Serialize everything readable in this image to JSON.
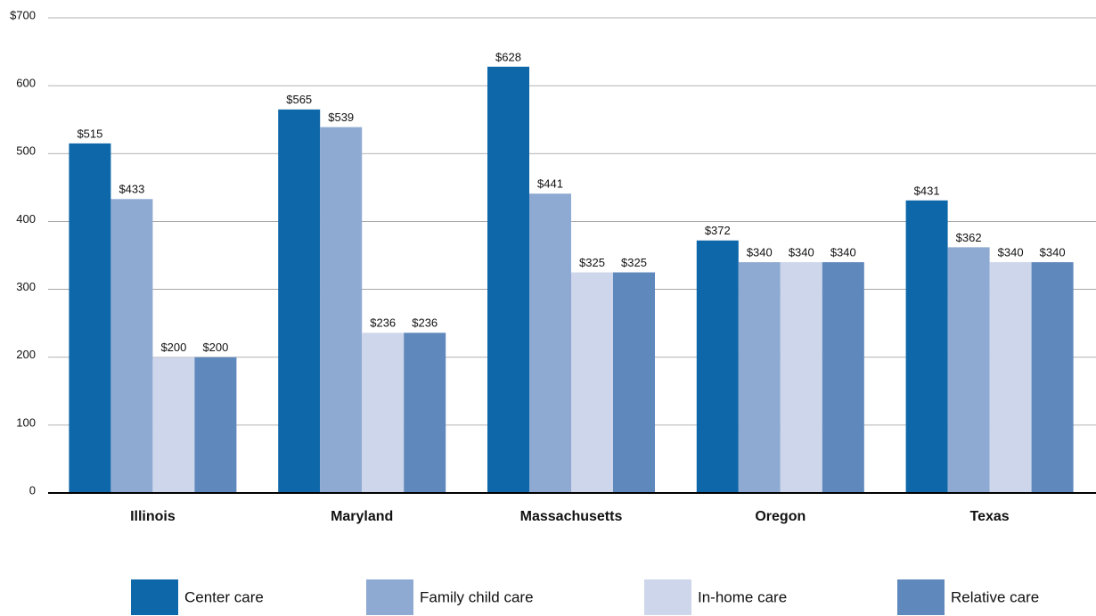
{
  "chart_data": {
    "type": "bar",
    "categories": [
      "Illinois",
      "Maryland",
      "Massachusetts",
      "Oregon",
      "Texas"
    ],
    "series": [
      {
        "name": "Center care",
        "color": "#0e67a8",
        "values": [
          515,
          565,
          628,
          372,
          431
        ],
        "value_labels": [
          "$515",
          "$565",
          "$628",
          "$372",
          "$431"
        ]
      },
      {
        "name": "Family child care",
        "color": "#8eaad2",
        "values": [
          433,
          539,
          441,
          340,
          362
        ],
        "value_labels": [
          "$433",
          "$539",
          "$441",
          "$340",
          "$362"
        ]
      },
      {
        "name": "In-home care",
        "color": "#cdd6ea",
        "values": [
          200,
          236,
          325,
          340,
          340
        ],
        "value_labels": [
          "$200",
          "$236",
          "$325",
          "$340",
          "$340"
        ]
      },
      {
        "name": "Relative care",
        "color": "#5f88bd",
        "values": [
          200,
          236,
          325,
          340,
          340
        ],
        "value_labels": [
          "$200",
          "$236",
          "$325",
          "$340",
          "$340"
        ]
      }
    ],
    "ylim": [
      0,
      700
    ],
    "yticks": [
      0,
      100,
      200,
      300,
      400,
      500,
      600,
      {
        "value": 700,
        "label": "$700"
      }
    ],
    "grid": true,
    "legend": "bottom"
  }
}
